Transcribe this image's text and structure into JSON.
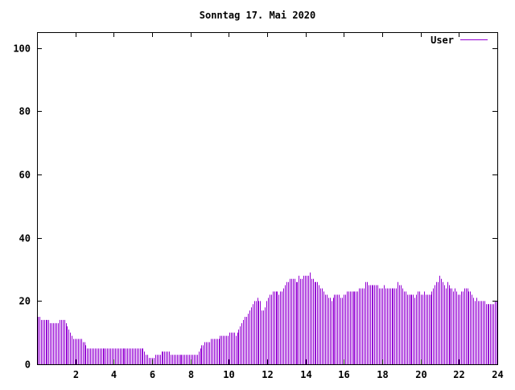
{
  "chart_data": {
    "type": "bar",
    "title": "Sonntag 17. Mai 2020",
    "xlabel": "",
    "ylabel": "",
    "xlim": [
      0,
      24
    ],
    "ylim": [
      0,
      105
    ],
    "xticks": [
      2,
      4,
      6,
      8,
      10,
      12,
      14,
      16,
      18,
      20,
      22,
      24
    ],
    "yticks": [
      0,
      20,
      40,
      60,
      80,
      100
    ],
    "grid": false,
    "legend_position": "top-right",
    "series": [
      {
        "name": "User",
        "color": "#9400d3",
        "values": [
          15,
          15,
          14,
          14,
          14,
          14,
          14,
          14,
          13,
          13,
          13,
          13,
          13,
          13,
          14,
          14,
          14,
          14,
          13,
          12,
          11,
          10,
          9,
          8,
          8,
          8,
          8,
          8,
          8,
          7,
          7,
          6,
          5,
          5,
          5,
          5,
          5,
          5,
          5,
          5,
          5,
          5,
          5,
          5,
          5,
          5,
          5,
          5,
          5,
          5,
          5,
          5,
          5,
          5,
          5,
          5,
          5,
          5,
          5,
          5,
          5,
          5,
          5,
          5,
          5,
          5,
          5,
          5,
          5,
          4,
          3,
          3,
          2,
          2,
          2,
          2,
          3,
          3,
          3,
          3,
          4,
          4,
          4,
          4,
          4,
          4,
          3,
          3,
          3,
          3,
          3,
          3,
          3,
          3,
          3,
          3,
          3,
          3,
          3,
          3,
          3,
          3,
          3,
          3,
          4,
          5,
          6,
          6,
          7,
          7,
          7,
          7,
          8,
          8,
          8,
          8,
          8,
          8,
          9,
          9,
          9,
          9,
          9,
          9,
          10,
          10,
          10,
          10,
          9,
          10,
          11,
          12,
          13,
          14,
          15,
          15,
          16,
          17,
          18,
          19,
          20,
          20,
          21,
          20,
          20,
          17,
          17,
          18,
          20,
          21,
          22,
          22,
          23,
          23,
          23,
          23,
          22,
          23,
          23,
          24,
          25,
          26,
          26,
          27,
          27,
          27,
          27,
          26,
          26,
          28,
          27,
          27,
          28,
          28,
          28,
          28,
          29,
          27,
          27,
          26,
          26,
          26,
          25,
          24,
          24,
          23,
          22,
          22,
          21,
          21,
          20,
          21,
          22,
          22,
          22,
          22,
          21,
          21,
          22,
          22,
          23,
          23,
          23,
          23,
          23,
          23,
          23,
          23,
          24,
          24,
          24,
          24,
          26,
          26,
          25,
          25,
          25,
          25,
          25,
          25,
          25,
          24,
          24,
          24,
          25,
          24,
          24,
          24,
          24,
          24,
          24,
          24,
          24,
          26,
          25,
          25,
          24,
          23,
          23,
          22,
          22,
          22,
          22,
          22,
          21,
          22,
          23,
          23,
          22,
          22,
          23,
          22,
          22,
          22,
          22,
          23,
          24,
          25,
          26,
          26,
          28,
          27,
          26,
          25,
          24,
          26,
          25,
          24,
          24,
          23,
          24,
          23,
          22,
          22,
          23,
          23,
          24,
          24,
          24,
          23,
          23,
          22,
          21,
          20,
          21,
          20,
          20,
          20,
          20,
          20,
          19,
          19,
          19,
          19,
          19,
          19,
          20,
          20
        ]
      }
    ]
  }
}
